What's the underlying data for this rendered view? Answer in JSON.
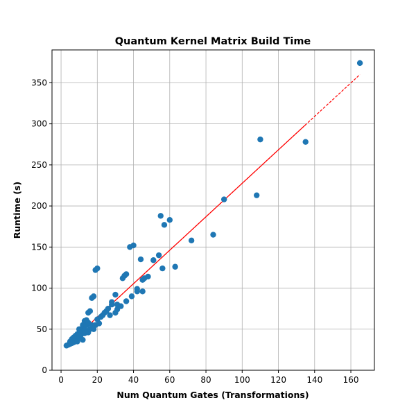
{
  "chart_data": {
    "type": "scatter",
    "title": "Quantum Kernel Matrix Build Time",
    "xlabel": "Num Quantum Gates (Transformations)",
    "ylabel": "Runtime (s)",
    "xlim": [
      -5,
      173
    ],
    "ylim": [
      0,
      390
    ],
    "xticks": [
      0,
      20,
      40,
      60,
      80,
      100,
      120,
      140,
      160
    ],
    "yticks": [
      0,
      50,
      100,
      150,
      200,
      250,
      300,
      350
    ],
    "grid": true,
    "point_color": "#1f77b4",
    "trend_color": "#ff0000",
    "points": {
      "x": [
        3,
        4,
        5,
        5,
        6,
        6,
        7,
        7,
        8,
        8,
        8,
        9,
        9,
        10,
        10,
        10,
        11,
        11,
        12,
        12,
        12,
        13,
        13,
        13,
        14,
        14,
        15,
        15,
        15,
        16,
        16,
        17,
        17,
        17,
        18,
        18,
        19,
        19,
        20,
        20,
        21,
        22,
        23,
        24,
        25,
        26,
        27,
        28,
        28,
        30,
        30,
        31,
        31,
        33,
        34,
        35,
        36,
        36,
        38,
        39,
        40,
        42,
        42,
        44,
        45,
        45,
        46,
        48,
        51,
        54,
        55,
        56,
        57,
        60,
        63,
        72,
        84,
        90,
        108,
        110,
        135,
        165
      ],
      "y": [
        30,
        31,
        32,
        35,
        33,
        38,
        34,
        40,
        36,
        39,
        42,
        35,
        44,
        40,
        45,
        50,
        43,
        48,
        37,
        52,
        55,
        50,
        60,
        45,
        55,
        61,
        46,
        58,
        70,
        50,
        72,
        52,
        88,
        55,
        90,
        50,
        122,
        55,
        124,
        62,
        57,
        65,
        67,
        70,
        72,
        75,
        67,
        80,
        83,
        70,
        92,
        74,
        80,
        78,
        112,
        115,
        84,
        117,
        150,
        90,
        152,
        96,
        99,
        135,
        110,
        96,
        112,
        114,
        134,
        140,
        188,
        124,
        177,
        183,
        126,
        158,
        165,
        208,
        213,
        281,
        278,
        374
      ]
    },
    "trend_line": {
      "style": "dashed",
      "x": [
        3,
        165
      ],
      "y": [
        30,
        360
      ]
    }
  }
}
